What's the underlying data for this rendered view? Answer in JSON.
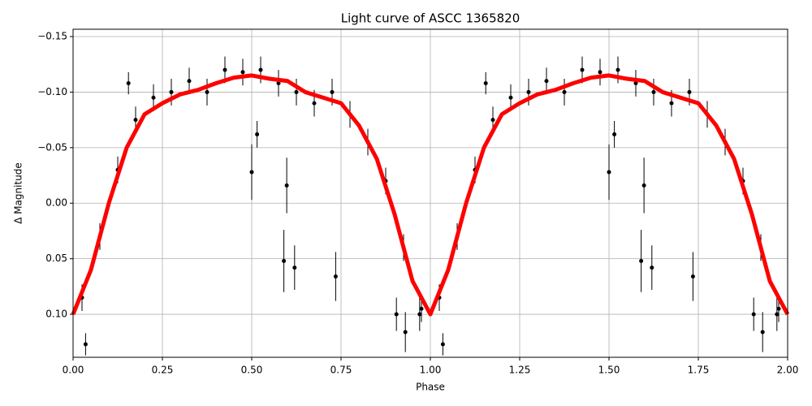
{
  "chart_data": {
    "type": "lightcurve",
    "title": "Light curve of ASCC 1365820",
    "xlabel": "Phase",
    "ylabel": "Δ Magnitude",
    "xlim": [
      0,
      2
    ],
    "ylim": [
      0.1387,
      -0.1566
    ],
    "grid": true,
    "xticks": [
      {
        "value": 0,
        "label": "0.00"
      },
      {
        "value": 0.25,
        "label": "0.25"
      },
      {
        "value": 0.5,
        "label": "0.50"
      },
      {
        "value": 0.75,
        "label": "0.75"
      },
      {
        "value": 1,
        "label": "1.00"
      },
      {
        "value": 1.25,
        "label": "1.25"
      },
      {
        "value": 1.5,
        "label": "1.50"
      },
      {
        "value": 1.75,
        "label": "1.75"
      },
      {
        "value": 2,
        "label": "2.00"
      }
    ],
    "yticks": [
      {
        "value": 0.1,
        "label": "0.10"
      },
      {
        "value": 0.05,
        "label": "0.05"
      },
      {
        "value": 0,
        "label": "0.00"
      },
      {
        "value": -0.05,
        "label": "−0.05"
      },
      {
        "value": -0.1,
        "label": "−0.10"
      },
      {
        "value": -0.15,
        "label": "−0.15"
      }
    ],
    "points": {
      "color": "#000000",
      "x": [
        0.025,
        0.075,
        0.125,
        0.175,
        0.225,
        0.275,
        0.325,
        0.375,
        0.425,
        0.475,
        0.525,
        0.575,
        0.625,
        0.675,
        0.725,
        0.775,
        0.825,
        0.875,
        0.925,
        0.975,
        0.035,
        0.155,
        0.5,
        0.515,
        0.59,
        0.598,
        0.62,
        0.735,
        0.905,
        0.93,
        0.97,
        1.025,
        1.075,
        1.125,
        1.175,
        1.225,
        1.275,
        1.325,
        1.375,
        1.425,
        1.475,
        1.525,
        1.575,
        1.625,
        1.675,
        1.725,
        1.775,
        1.825,
        1.875,
        1.925,
        1.975,
        1.035,
        1.155,
        1.5,
        1.515,
        1.59,
        1.598,
        1.62,
        1.735,
        1.905,
        1.93,
        1.97
      ],
      "values": [
        0.085,
        0.03,
        -0.03,
        -0.075,
        -0.095,
        -0.1,
        -0.11,
        -0.1,
        -0.12,
        -0.118,
        -0.12,
        -0.108,
        -0.1,
        -0.09,
        -0.1,
        -0.08,
        -0.055,
        -0.02,
        0.04,
        0.095,
        0.127,
        -0.108,
        -0.028,
        -0.062,
        0.052,
        -0.016,
        0.058,
        0.066,
        0.1,
        0.116,
        0.1,
        0.085,
        0.03,
        -0.03,
        -0.075,
        -0.095,
        -0.1,
        -0.11,
        -0.1,
        -0.12,
        -0.118,
        -0.12,
        -0.108,
        -0.1,
        -0.09,
        -0.1,
        -0.08,
        -0.055,
        -0.02,
        0.04,
        0.095,
        0.127,
        -0.108,
        -0.028,
        -0.062,
        0.052,
        -0.016,
        0.058,
        0.066,
        0.1,
        0.116,
        0.1
      ],
      "errors": [
        0.012,
        0.012,
        0.012,
        0.012,
        0.012,
        0.012,
        0.012,
        0.012,
        0.012,
        0.012,
        0.012,
        0.012,
        0.012,
        0.012,
        0.012,
        0.012,
        0.012,
        0.012,
        0.012,
        0.012,
        0.01,
        0.01,
        0.025,
        0.012,
        0.028,
        0.025,
        0.02,
        0.022,
        0.015,
        0.018,
        0.015,
        0.012,
        0.012,
        0.012,
        0.012,
        0.012,
        0.012,
        0.012,
        0.012,
        0.012,
        0.012,
        0.012,
        0.012,
        0.012,
        0.012,
        0.012,
        0.012,
        0.012,
        0.012,
        0.012,
        0.012,
        0.01,
        0.01,
        0.025,
        0.012,
        0.028,
        0.025,
        0.02,
        0.022,
        0.015,
        0.018,
        0.015
      ]
    },
    "curve": {
      "color": "#ff0000",
      "x": [
        0,
        0.05,
        0.1,
        0.15,
        0.2,
        0.25,
        0.3,
        0.35,
        0.4,
        0.45,
        0.5,
        0.55,
        0.6,
        0.65,
        0.7,
        0.75,
        0.8,
        0.85,
        0.9,
        0.95,
        1,
        1.05,
        1.1,
        1.15,
        1.2,
        1.25,
        1.3,
        1.35,
        1.4,
        1.45,
        1.5,
        1.55,
        1.6,
        1.65,
        1.7,
        1.75,
        1.8,
        1.85,
        1.9,
        1.95,
        2
      ],
      "values": [
        0.1,
        0.06,
        0,
        -0.05,
        -0.08,
        -0.09,
        -0.098,
        -0.102,
        -0.108,
        -0.113,
        -0.115,
        -0.112,
        -0.11,
        -0.1,
        -0.095,
        -0.09,
        -0.07,
        -0.04,
        0.01,
        0.07,
        0.1,
        0.06,
        0,
        -0.05,
        -0.08,
        -0.09,
        -0.098,
        -0.102,
        -0.108,
        -0.113,
        -0.115,
        -0.112,
        -0.11,
        -0.1,
        -0.095,
        -0.09,
        -0.07,
        -0.04,
        0.01,
        0.07,
        0.1
      ]
    }
  }
}
